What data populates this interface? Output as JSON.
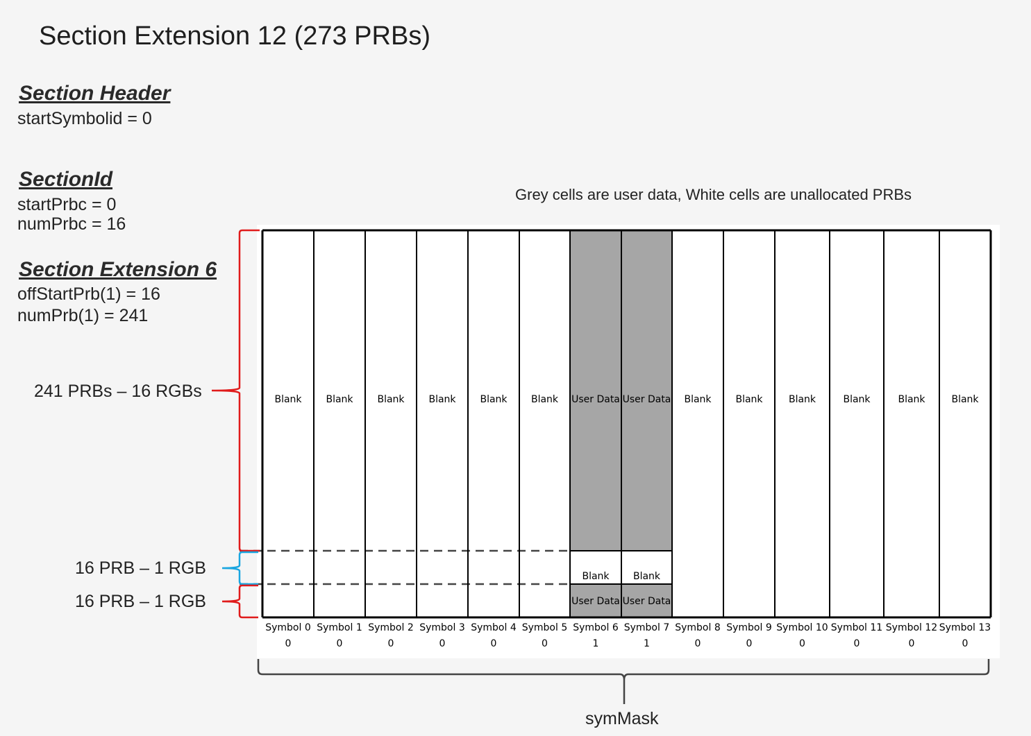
{
  "title": "Section Extension 12 (273 PRBs)",
  "section_header": {
    "heading": "Section Header",
    "lines": [
      "startSymbolid = 0"
    ]
  },
  "section_id": {
    "heading": "SectionId",
    "lines": [
      "startPrbc = 0",
      "numPrbc = 16"
    ]
  },
  "section_ext6": {
    "heading": "Section Extension 6",
    "lines": [
      "offStartPrb(1) = 16",
      "numPrb(1) = 241"
    ]
  },
  "legend_note": "Grey cells are user data, White cells are unallocated PRBs",
  "bracket_labels": {
    "large": "241 PRBs – 16 RGBs",
    "middle": "16 PRB – 1 RGB",
    "bottom": "16 PRB – 1 RGB"
  },
  "cell_texts": {
    "blank": "Blank",
    "user_data": "User Data"
  },
  "symbols": [
    {
      "label": "Symbol 0",
      "mask": "0"
    },
    {
      "label": "Symbol 1",
      "mask": "0"
    },
    {
      "label": "Symbol 2",
      "mask": "0"
    },
    {
      "label": "Symbol 3",
      "mask": "0"
    },
    {
      "label": "Symbol 4",
      "mask": "0"
    },
    {
      "label": "Symbol 5",
      "mask": "0"
    },
    {
      "label": "Symbol 6",
      "mask": "1"
    },
    {
      "label": "Symbol 7",
      "mask": "1"
    },
    {
      "label": "Symbol 8",
      "mask": "0"
    },
    {
      "label": "Symbol 9",
      "mask": "0"
    },
    {
      "label": "Symbol 10",
      "mask": "0"
    },
    {
      "label": "Symbol 11",
      "mask": "0"
    },
    {
      "label": "Symbol 12",
      "mask": "0"
    },
    {
      "label": "Symbol 13",
      "mask": "0"
    }
  ],
  "symmask_label": "symMask",
  "colors": {
    "user_data_grey": "#a6a6a6",
    "red_bracket": "#e01b1b",
    "blue_bracket": "#1aa6e0",
    "grid_line": "#000000",
    "dashed_line": "#444444"
  }
}
